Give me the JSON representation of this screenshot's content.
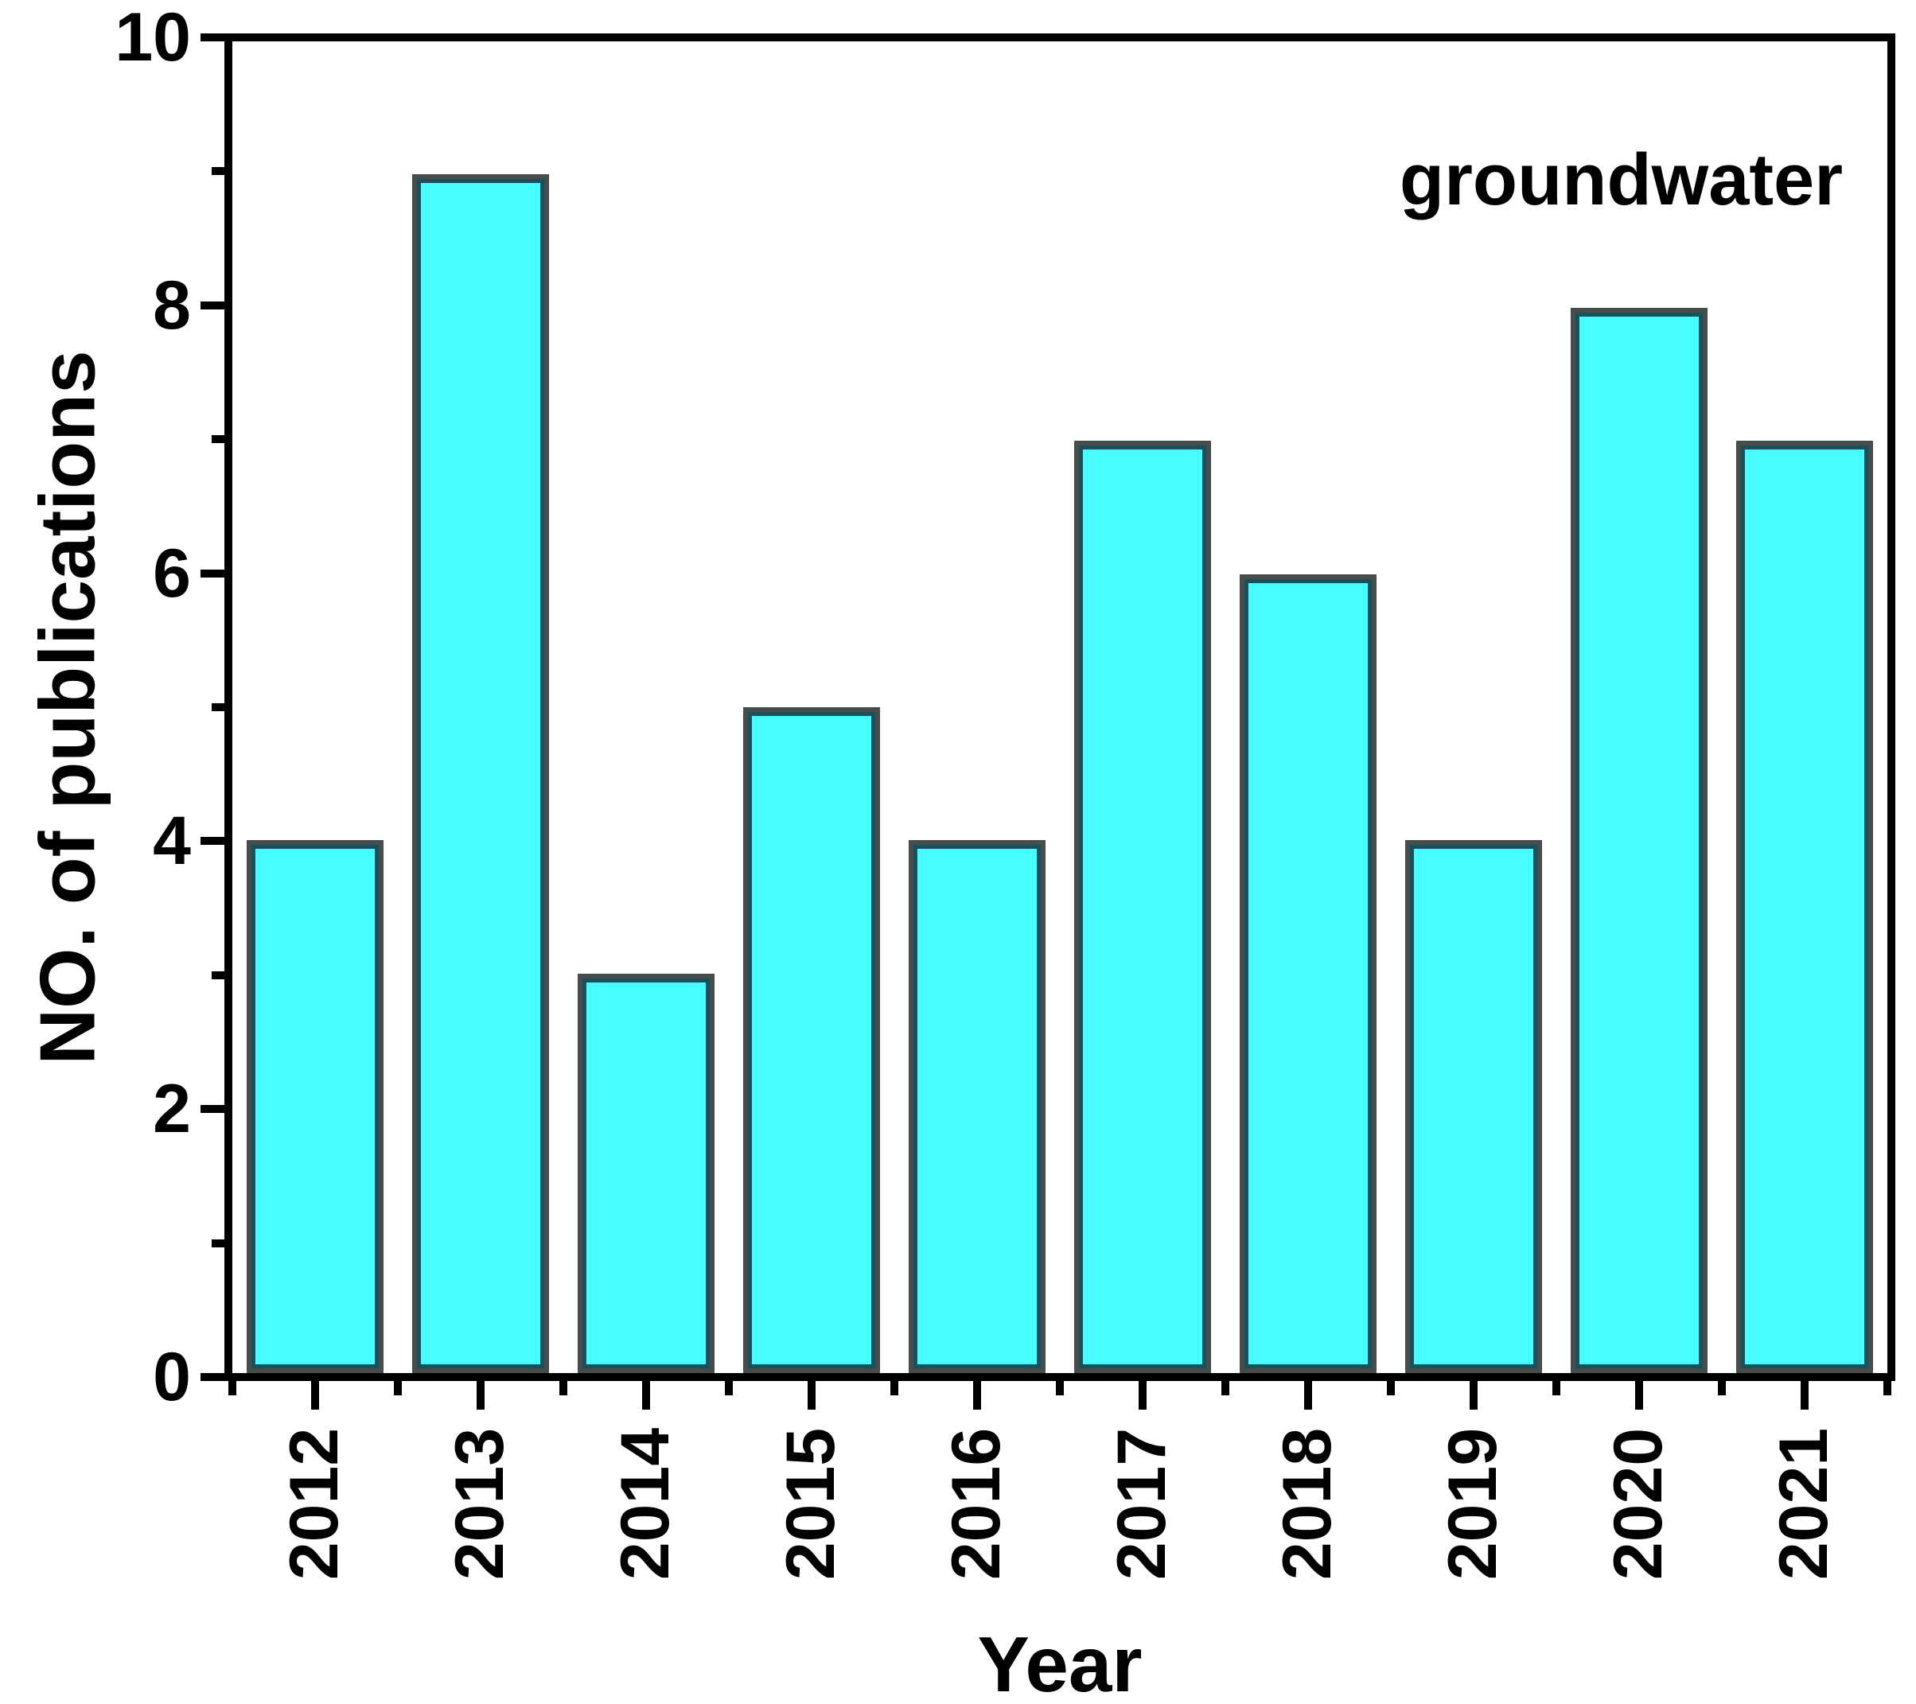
{
  "chart_data": {
    "type": "bar",
    "title": "",
    "xlabel": "Year",
    "ylabel": "NO. of publications",
    "annotation": "groundwater",
    "annotation_position": "top-right-inside",
    "categories": [
      "2012",
      "2013",
      "2014",
      "2015",
      "2016",
      "2017",
      "2018",
      "2019",
      "2020",
      "2021"
    ],
    "values": [
      4,
      9,
      3,
      5,
      4,
      7,
      6,
      4,
      8,
      7
    ],
    "ylim": [
      0,
      10
    ],
    "y_major_ticks": [
      0,
      2,
      4,
      6,
      8,
      10
    ],
    "y_minor_ticks": [
      1,
      3,
      5,
      7,
      9
    ],
    "grid": false,
    "frame": "full-box",
    "tick_direction": "out",
    "x_tick_label_rotation_deg": -90,
    "colors": {
      "bar_fill": "#46feff",
      "bar_border_outer": "#474d4d",
      "bar_border_inner": "#17525c",
      "axis": "#000000",
      "text": "#000000",
      "background": "#ffffff"
    }
  }
}
